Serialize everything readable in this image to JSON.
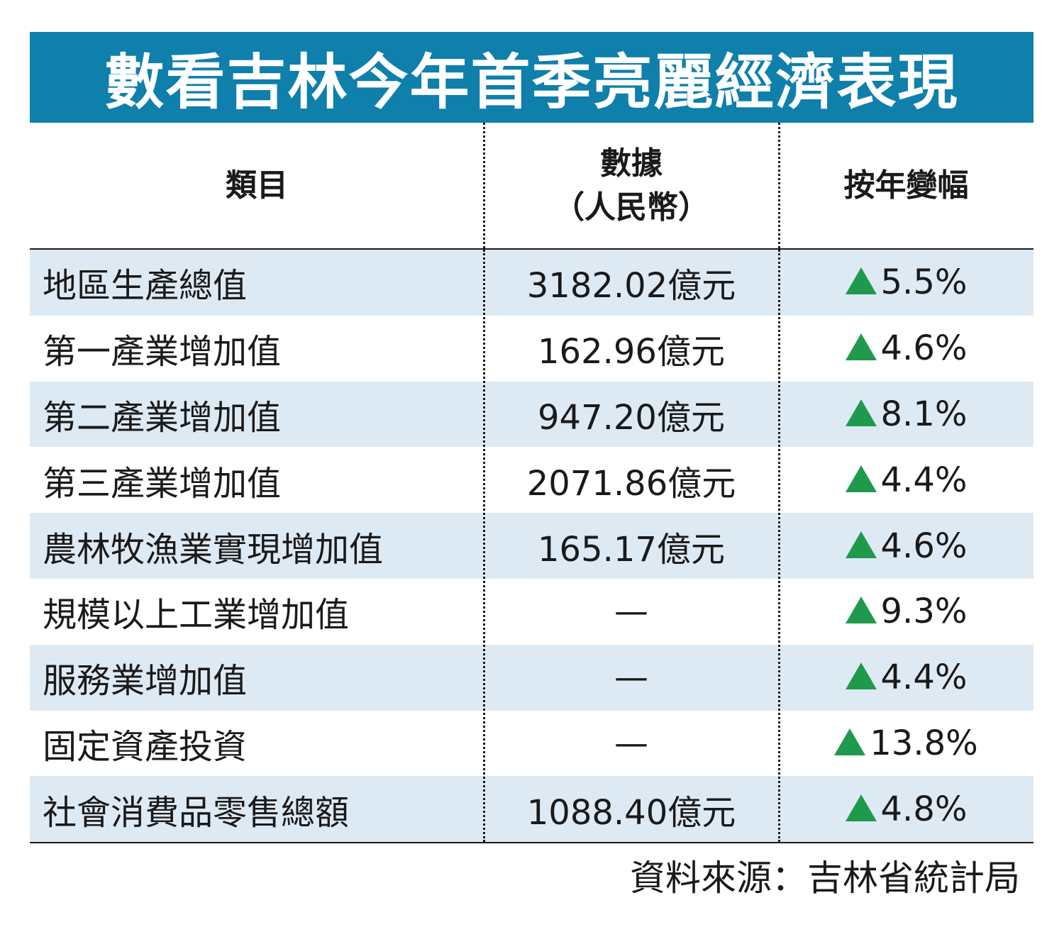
{
  "title": "數看吉林今年首季亮麗經濟表現",
  "table": {
    "headers": {
      "category": "類目",
      "data_line1": "數據",
      "data_line2": "（人民幣）",
      "change": "按年變幅"
    },
    "rows": [
      {
        "category": "地區生產總值",
        "value": "3182.02億元",
        "change": "5.5%"
      },
      {
        "category": "第一產業增加值",
        "value": "162.96億元",
        "change": "4.6%"
      },
      {
        "category": "第二產業增加值",
        "value": "947.20億元",
        "change": "8.1%"
      },
      {
        "category": "第三產業增加值",
        "value": "2071.86億元",
        "change": "4.4%"
      },
      {
        "category": "農林牧漁業實現增加值",
        "value": "165.17億元",
        "change": "4.6%"
      },
      {
        "category": "規模以上工業增加值",
        "value": "—",
        "change": "9.3%"
      },
      {
        "category": "服務業增加值",
        "value": "—",
        "change": "4.4%"
      },
      {
        "category": "固定資產投資",
        "value": "—",
        "change": "13.8%"
      },
      {
        "category": "社會消費品零售總額",
        "value": "1088.40億元",
        "change": "4.8%"
      }
    ]
  },
  "source": "資料來源：吉林省統計局",
  "colors": {
    "banner": "#0f7fab",
    "row_shade": "#deeaf3",
    "up_arrow": "#1f9a4c"
  },
  "icons": {
    "change_indicator": "up-triangle-icon"
  }
}
